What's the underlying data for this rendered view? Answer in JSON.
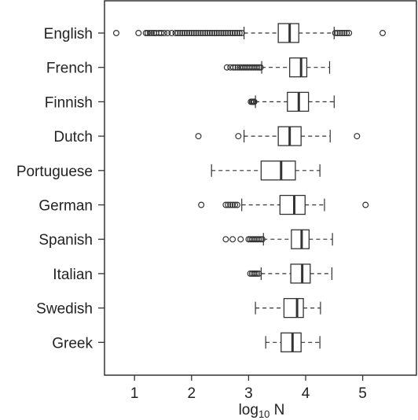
{
  "chart_data": {
    "type": "boxplot",
    "orientation": "horizontal",
    "xlabel_base": "log",
    "xlabel_sub": "10",
    "xlabel_var": " N",
    "xlim": [
      0.5,
      5.95
    ],
    "xticks": [
      "1",
      "2",
      "3",
      "4",
      "5"
    ],
    "xtick_values": [
      1,
      2,
      3,
      4,
      5
    ],
    "grid": false,
    "legend": "none",
    "colors": {
      "stroke": "#333333",
      "box_fill": "#ffffff",
      "text": "#222222"
    },
    "categories": [
      "English",
      "French",
      "Finnish",
      "Dutch",
      "Portuguese",
      "German",
      "Spanish",
      "Italian",
      "Swedish",
      "Greek"
    ],
    "boxes": [
      {
        "name": "English",
        "whisker_low": 2.92,
        "q1": 3.52,
        "median": 3.72,
        "q3": 3.88,
        "whisker_high": 4.5,
        "outliers": [
          0.68,
          1.07,
          1.2,
          1.23,
          1.27,
          1.3,
          1.34,
          1.38,
          1.43,
          1.47,
          1.52,
          1.58,
          1.65,
          1.72,
          1.76,
          1.8,
          1.84,
          1.88,
          1.92,
          1.96,
          2.0,
          2.04,
          2.08,
          2.12,
          2.16,
          2.2,
          2.24,
          2.28,
          2.32,
          2.36,
          2.4,
          2.44,
          2.48,
          2.52,
          2.56,
          2.6,
          2.64,
          2.68,
          2.72,
          2.76,
          2.8,
          2.84,
          2.88,
          4.52,
          4.56,
          4.6,
          4.64,
          4.68,
          4.72,
          4.76,
          5.35
        ]
      },
      {
        "name": "French",
        "whisker_low": 3.23,
        "q1": 3.72,
        "median": 3.92,
        "q3": 4.02,
        "whisker_high": 4.42,
        "outliers": [
          2.62,
          2.68,
          2.73,
          2.77,
          2.81,
          2.85,
          2.88,
          2.91,
          2.94,
          2.97,
          3.0,
          3.03,
          3.06,
          3.09,
          3.12,
          3.15,
          3.18,
          3.21
        ]
      },
      {
        "name": "Finnish",
        "whisker_low": 3.12,
        "q1": 3.68,
        "median": 3.88,
        "q3": 4.05,
        "whisker_high": 4.5,
        "outliers": [
          3.04,
          3.06,
          3.08,
          3.09,
          3.1
        ]
      },
      {
        "name": "Dutch",
        "whisker_low": 2.92,
        "q1": 3.52,
        "median": 3.72,
        "q3": 3.92,
        "whisker_high": 4.43,
        "outliers": [
          2.12,
          2.82,
          4.9
        ]
      },
      {
        "name": "Portuguese",
        "whisker_low": 2.35,
        "q1": 3.22,
        "median": 3.57,
        "q3": 3.82,
        "whisker_high": 4.25,
        "outliers": []
      },
      {
        "name": "German",
        "whisker_low": 2.88,
        "q1": 3.55,
        "median": 3.8,
        "q3": 3.99,
        "whisker_high": 4.33,
        "outliers": [
          2.17,
          2.6,
          2.64,
          2.68,
          2.72,
          2.76,
          2.8,
          5.05
        ]
      },
      {
        "name": "Spanish",
        "whisker_low": 3.26,
        "q1": 3.75,
        "median": 3.93,
        "q3": 4.06,
        "whisker_high": 4.47,
        "outliers": [
          2.6,
          2.72,
          2.86,
          3.0,
          3.03,
          3.06,
          3.09,
          3.12,
          3.15,
          3.18,
          3.21,
          3.24
        ]
      },
      {
        "name": "Italian",
        "whisker_low": 3.22,
        "q1": 3.74,
        "median": 3.94,
        "q3": 4.08,
        "whisker_high": 4.46,
        "outliers": [
          3.03,
          3.06,
          3.09,
          3.12,
          3.15,
          3.18
        ]
      },
      {
        "name": "Swedish",
        "whisker_low": 3.12,
        "q1": 3.62,
        "median": 3.85,
        "q3": 3.96,
        "whisker_high": 4.26,
        "outliers": []
      },
      {
        "name": "Greek",
        "whisker_low": 3.3,
        "q1": 3.57,
        "median": 3.77,
        "q3": 3.92,
        "whisker_high": 4.25,
        "outliers": []
      }
    ]
  }
}
